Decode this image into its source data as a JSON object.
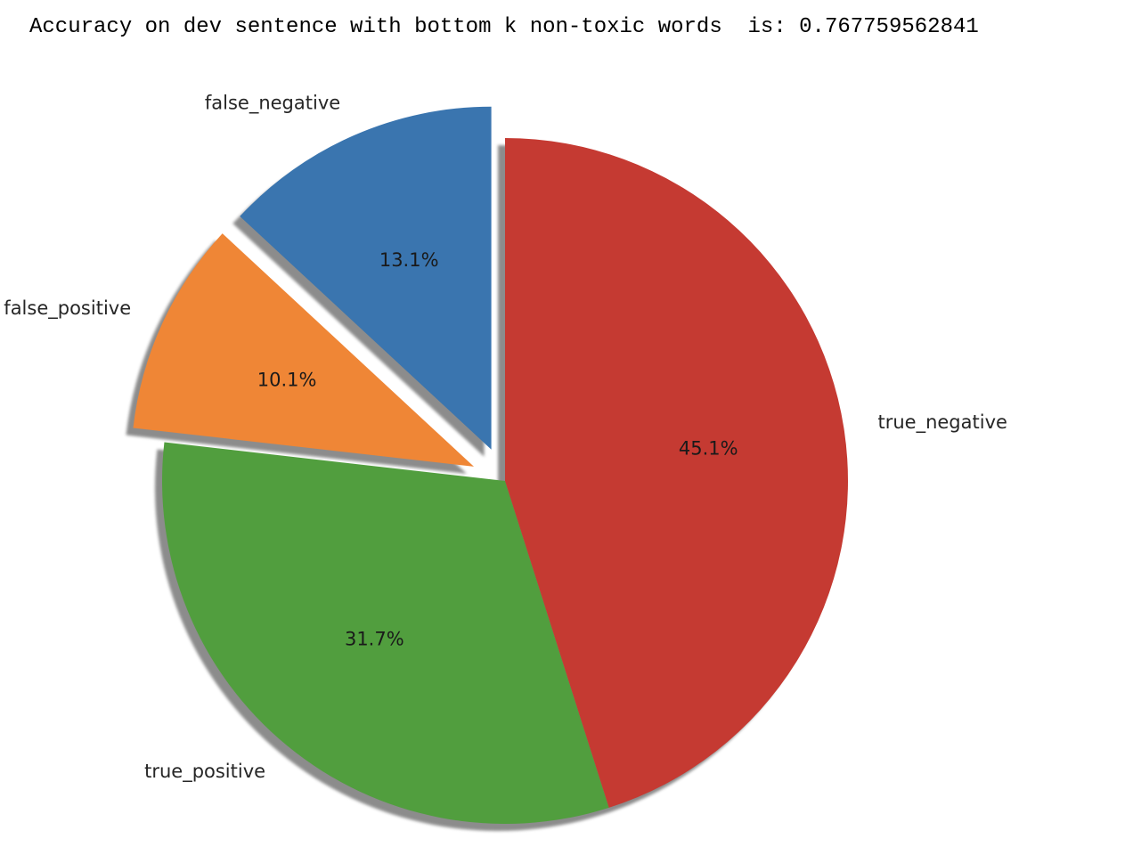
{
  "output": {
    "text": "Accuracy on dev sentence with bottom k non-toxic words  is: 0.767759562841"
  },
  "chart_data": {
    "type": "pie",
    "title": "",
    "shadow": true,
    "start_angle_deg": 90,
    "direction": "counterclockwise",
    "slices": [
      {
        "label": "false_negative",
        "value": 13.1,
        "pct_label": "13.1%",
        "color": "#3a75af",
        "explode": 0.1
      },
      {
        "label": "false_positive",
        "value": 10.1,
        "pct_label": "10.1%",
        "color": "#ef8636",
        "explode": 0.1
      },
      {
        "label": "true_positive",
        "value": 31.7,
        "pct_label": "31.7%",
        "color": "#519e3e",
        "explode": 0
      },
      {
        "label": "true_negative",
        "value": 45.1,
        "pct_label": "45.1%",
        "color": "#c53a32",
        "explode": 0
      }
    ]
  }
}
